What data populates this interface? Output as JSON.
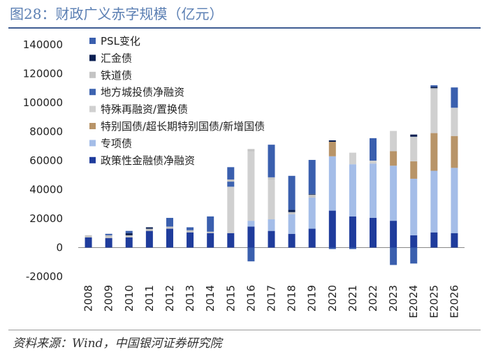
{
  "title": "图28：财政广义赤字规模（亿元）",
  "source": "资料来源：Wind，中国银河证券研究院",
  "chart_data": {
    "type": "bar",
    "stacked": true,
    "title": "图28：财政广义赤字规模（亿元）",
    "xlabel": "",
    "ylabel": "",
    "ylim": [
      -20000,
      140000
    ],
    "yticks": [
      -20000,
      0,
      20000,
      40000,
      60000,
      80000,
      100000,
      120000,
      140000
    ],
    "categories": [
      "2008",
      "2009",
      "2010",
      "2011",
      "2012",
      "2013",
      "2014",
      "2015",
      "2016",
      "2017",
      "2018",
      "2019",
      "2020",
      "2021",
      "2022",
      "2023",
      "E2024",
      "E2025",
      "E2026"
    ],
    "legend_order": [
      "PSL变化",
      "汇金债",
      "铁道债",
      "地方城投债净融资",
      "特殊再融资/置换债",
      "特别国债/超长期特别国债/新增国债",
      "专项债",
      "政策性金融债净融资"
    ],
    "stack_order": [
      "政策性金融债净融资",
      "专项债",
      "特别国债/超长期特别国债/新增国债",
      "特殊再融资/置换债",
      "地方城投债净融资",
      "铁道债",
      "汇金债",
      "PSL变化"
    ],
    "colors": {
      "政策性金融债净融资": "#1f3c9c",
      "专项债": "#a4bde8",
      "特别国债/超长期特别国债/新增国债": "#b89468",
      "特殊再融资/置换债": "#d0d0d0",
      "地方城投债净融资": "#3d63b0",
      "铁道债": "#c4c4c4",
      "汇金债": "#0a1f52",
      "PSL变化": "#3a5fae"
    },
    "series": [
      {
        "name": "政策性金融债净融资",
        "values": [
          7000,
          6500,
          7000,
          11500,
          13000,
          10500,
          10000,
          10000,
          14500,
          11500,
          9500,
          13000,
          25500,
          21500,
          20500,
          18500,
          8500,
          10500,
          10000
        ]
      },
      {
        "name": "专项债",
        "values": [
          0,
          0,
          0,
          0,
          0,
          0,
          0,
          0,
          4000,
          8000,
          13500,
          21500,
          37500,
          36000,
          37500,
          38000,
          39000,
          42500,
          45000
        ]
      },
      {
        "name": "特别国债/超长期特别国债/新增国债",
        "values": [
          0,
          0,
          0,
          0,
          0,
          0,
          0,
          0,
          0,
          0,
          0,
          0,
          10000,
          0,
          0,
          10000,
          12000,
          26000,
          22000
        ]
      },
      {
        "name": "特殊再融资/置换债",
        "values": [
          0,
          0,
          0,
          0,
          0,
          0,
          0,
          32000,
          48000,
          27500,
          0,
          0,
          0,
          8000,
          2000,
          14000,
          17000,
          30000,
          19500
        ]
      },
      {
        "name": "地方城投债净融资",
        "values": [
          0,
          0,
          0,
          0,
          0,
          0,
          0,
          3500,
          0,
          0,
          0,
          0,
          0,
          0,
          0,
          0,
          0,
          0,
          0
        ]
      },
      {
        "name": "铁道债",
        "values": [
          1500,
          2000,
          1500,
          1500,
          1500,
          1500,
          1000,
          1500,
          1500,
          1500,
          1500,
          2000,
          0,
          0,
          0,
          0,
          0,
          1000,
          0
        ]
      },
      {
        "name": "汇金债",
        "values": [
          0,
          0,
          1500,
          1000,
          0,
          0,
          0,
          0,
          0,
          0,
          1500,
          500,
          1000,
          0,
          0,
          0,
          1500,
          1000,
          0
        ]
      },
      {
        "name": "PSL变化",
        "values": [
          0,
          1000,
          1500,
          0,
          6000,
          2000,
          10500,
          8500,
          -9500,
          22500,
          23500,
          23500,
          -1000,
          -1000,
          15500,
          -12000,
          -11000,
          1000,
          14000
        ]
      }
    ]
  }
}
